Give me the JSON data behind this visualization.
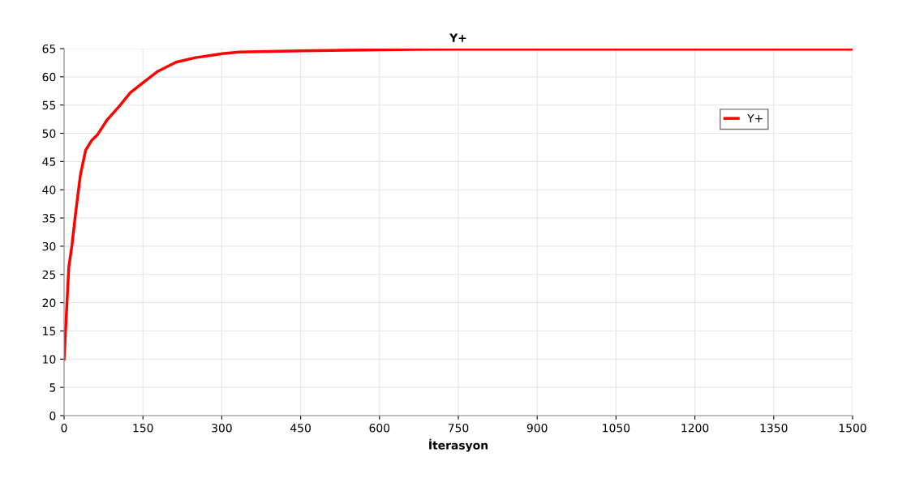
{
  "chart_data": {
    "type": "line",
    "title": "Y+",
    "xlabel": "İterasyon",
    "series": [
      {
        "name": "Y+",
        "color": "#ff0000",
        "x": [
          0,
          9,
          15,
          22,
          31,
          41,
          53,
          64,
          82,
          105,
          126,
          152,
          177,
          213,
          250,
          301,
          333,
          450,
          600,
          750,
          900,
          1050,
          1200,
          1350,
          1500
        ],
        "values": [
          10,
          26.3,
          30.2,
          35.9,
          42.6,
          47.0,
          48.8,
          49.8,
          52.4,
          54.8,
          57.2,
          59.1,
          60.9,
          62.6,
          63.4,
          64.1,
          64.4,
          64.6,
          64.8,
          64.9,
          64.9,
          64.9,
          64.9,
          64.9,
          64.9
        ]
      }
    ],
    "xlim": [
      0,
      1500
    ],
    "xticks": [
      0,
      150,
      300,
      450,
      600,
      750,
      900,
      1050,
      1200,
      1350,
      1500
    ],
    "ylim": [
      0,
      65
    ],
    "yticks": [
      0,
      5,
      10,
      15,
      20,
      25,
      30,
      35,
      40,
      45,
      50,
      55,
      60,
      65
    ],
    "grid": true,
    "legend": "top right",
    "line_style": "solid",
    "marker": "none"
  }
}
